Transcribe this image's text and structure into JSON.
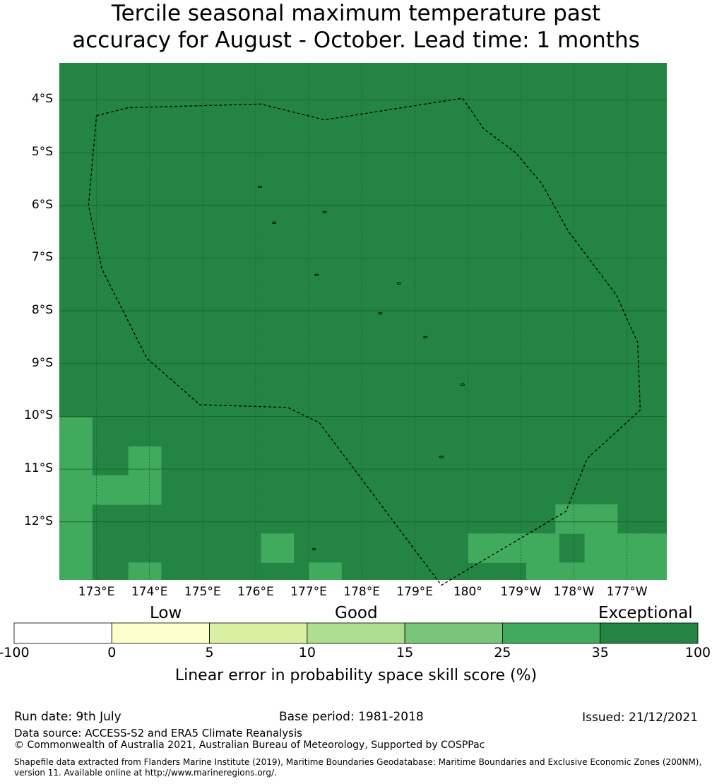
{
  "title_line1": "Tercile seasonal maximum temperature past",
  "title_line2": "accuracy for August - October. Lead time: 1 months",
  "map": {
    "lon_min": 172.3,
    "lon_max": 183.75,
    "lat_min": -13.1,
    "lat_max": -3.3,
    "lat_ticks": [
      {
        "value": -4,
        "label": "4°S"
      },
      {
        "value": -5,
        "label": "5°S"
      },
      {
        "value": -6,
        "label": "6°S"
      },
      {
        "value": -7,
        "label": "7°S"
      },
      {
        "value": -8,
        "label": "8°S"
      },
      {
        "value": -9,
        "label": "9°S"
      },
      {
        "value": -10,
        "label": "10°S"
      },
      {
        "value": -11,
        "label": "11°S"
      },
      {
        "value": -12,
        "label": "12°S"
      }
    ],
    "lon_ticks": [
      {
        "value": 173,
        "label": "173°E"
      },
      {
        "value": 174,
        "label": "174°E"
      },
      {
        "value": 175,
        "label": "175°E"
      },
      {
        "value": 176,
        "label": "176°E"
      },
      {
        "value": 177,
        "label": "177°E"
      },
      {
        "value": 178,
        "label": "178°E"
      },
      {
        "value": 179,
        "label": "179°E"
      },
      {
        "value": 180,
        "label": "180°"
      },
      {
        "value": 181,
        "label": "179°W"
      },
      {
        "value": 182,
        "label": "178°W"
      },
      {
        "value": 183,
        "label": "177°W"
      }
    ],
    "background_class": 6,
    "cell_size_deg": 0.55,
    "cells": [
      {
        "lon": 172.3,
        "lat": -10.02,
        "cls": 5
      },
      {
        "lon": 172.3,
        "lat": -10.57,
        "cls": 5
      },
      {
        "lon": 172.3,
        "lat": -11.12,
        "cls": 5
      },
      {
        "lon": 172.3,
        "lat": -11.67,
        "cls": 5
      },
      {
        "lon": 172.3,
        "lat": -12.22,
        "cls": 5
      },
      {
        "lon": 172.3,
        "lat": -12.77,
        "cls": 5
      },
      {
        "lon": 172.6,
        "lat": -11.12,
        "cls": 5
      },
      {
        "lon": 173.1,
        "lat": -11.12,
        "cls": 5
      },
      {
        "lon": 173.6,
        "lat": -10.57,
        "cls": 5
      },
      {
        "lon": 173.6,
        "lat": -11.12,
        "cls": 5
      },
      {
        "lon": 173.6,
        "lat": -12.77,
        "cls": 5
      },
      {
        "lon": 173.6,
        "lat": -13.32,
        "cls": 5
      },
      {
        "lon": 172.6,
        "lat": -13.32,
        "cls": 5
      },
      {
        "lon": 173.1,
        "lat": -13.32,
        "cls": 5
      },
      {
        "lon": 174.2,
        "lat": -13.32,
        "cls": 5
      },
      {
        "lon": 174.75,
        "lat": -13.32,
        "cls": 5
      },
      {
        "lon": 175.3,
        "lat": -13.32,
        "cls": 5
      },
      {
        "lon": 176.1,
        "lat": -12.22,
        "cls": 5
      },
      {
        "lon": 177.0,
        "lat": -12.77,
        "cls": 5
      },
      {
        "lon": 177.0,
        "lat": -13.32,
        "cls": 5
      },
      {
        "lon": 177.5,
        "lat": -13.6,
        "cls": 5
      },
      {
        "lon": 178.1,
        "lat": -13.6,
        "cls": 5
      },
      {
        "lon": 178.4,
        "lat": -13.32,
        "cls": 5
      },
      {
        "lon": 180.0,
        "lat": -12.22,
        "cls": 5
      },
      {
        "lon": 180.55,
        "lat": -12.22,
        "cls": 5
      },
      {
        "lon": 181.1,
        "lat": -12.22,
        "cls": 5
      },
      {
        "lon": 181.1,
        "lat": -12.77,
        "cls": 5
      },
      {
        "lon": 181.65,
        "lat": -12.77,
        "cls": 5
      },
      {
        "lon": 181.65,
        "lat": -11.67,
        "cls": 5
      },
      {
        "lon": 182.2,
        "lat": -11.67,
        "cls": 5
      },
      {
        "lon": 182.2,
        "lat": -12.22,
        "cls": 5
      },
      {
        "lon": 182.2,
        "lat": -12.77,
        "cls": 5
      },
      {
        "lon": 182.2,
        "lat": -13.32,
        "cls": 5
      },
      {
        "lon": 182.75,
        "lat": -12.22,
        "cls": 5
      },
      {
        "lon": 182.75,
        "lat": -12.77,
        "cls": 5
      },
      {
        "lon": 183.3,
        "lat": -12.22,
        "cls": 5
      },
      {
        "lon": 183.3,
        "lat": -12.77,
        "cls": 5
      },
      {
        "lon": 183.3,
        "lat": -13.32,
        "cls": 5
      },
      {
        "lon": 182.75,
        "lat": -13.32,
        "cls": 4
      }
    ],
    "eez_boundary": [
      [
        173.0,
        -4.3
      ],
      [
        173.6,
        -4.15
      ],
      [
        176.1,
        -4.08
      ],
      [
        177.3,
        -4.38
      ],
      [
        179.9,
        -3.97
      ],
      [
        180.3,
        -4.55
      ],
      [
        180.9,
        -5.0
      ],
      [
        181.4,
        -5.6
      ],
      [
        181.9,
        -6.5
      ],
      [
        182.8,
        -7.7
      ],
      [
        183.2,
        -8.6
      ],
      [
        183.25,
        -9.88
      ],
      [
        182.25,
        -10.8
      ],
      [
        181.85,
        -11.8
      ],
      [
        179.5,
        -13.2
      ],
      [
        177.2,
        -10.12
      ],
      [
        176.6,
        -9.83
      ],
      [
        174.95,
        -9.78
      ],
      [
        173.95,
        -8.9
      ],
      [
        173.1,
        -7.2
      ],
      [
        172.85,
        -6.0
      ],
      [
        173.0,
        -4.3
      ]
    ],
    "islands": [
      [
        176.08,
        -5.65
      ],
      [
        176.35,
        -6.33
      ],
      [
        177.3,
        -6.13
      ],
      [
        177.15,
        -7.32
      ],
      [
        178.7,
        -7.48
      ],
      [
        178.35,
        -8.05
      ],
      [
        179.2,
        -8.5
      ],
      [
        179.9,
        -9.4
      ],
      [
        179.5,
        -10.77
      ],
      [
        177.1,
        -12.52
      ]
    ]
  },
  "categories": [
    {
      "label": "Low"
    },
    {
      "label": "Good"
    },
    {
      "label": "Exceptional"
    }
  ],
  "colorbar": {
    "classes": [
      {
        "from": "-100",
        "to": "0",
        "color": "#ffffff"
      },
      {
        "from": "0",
        "to": "5",
        "color": "#ffffcc"
      },
      {
        "from": "5",
        "to": "10",
        "color": "#d9f0a3"
      },
      {
        "from": "10",
        "to": "15",
        "color": "#addd8e"
      },
      {
        "from": "15",
        "to": "25",
        "color": "#78c679"
      },
      {
        "from": "25",
        "to": "35",
        "color": "#41ab5d"
      },
      {
        "from": "35",
        "to": "100",
        "color": "#238443"
      }
    ],
    "ticks": [
      "-100",
      "0",
      "5",
      "10",
      "15",
      "25",
      "35",
      "100"
    ],
    "title": "Linear error in probability space skill score (%)"
  },
  "footer": {
    "run_date": "Run date: 9th July",
    "base_period": "Base period: 1981-2018",
    "issued": "Issued: 21/12/2021",
    "data_source": "Data source: ACCESS-S2 and ERA5 Climate Reanalysis",
    "copyright": "© Commonwealth of Australia 2021, Australian Bureau of Meteorology, Supported by COSPPac",
    "shapefile_line1": "Shapefile data extracted from Flanders Marine Institute (2019), Maritime Boundaries Geodatabase: Maritime Boundaries and Exclusive Economic Zones (200NM),",
    "shapefile_line2": "version 11. Available online at http://www.marineregions.org/."
  }
}
